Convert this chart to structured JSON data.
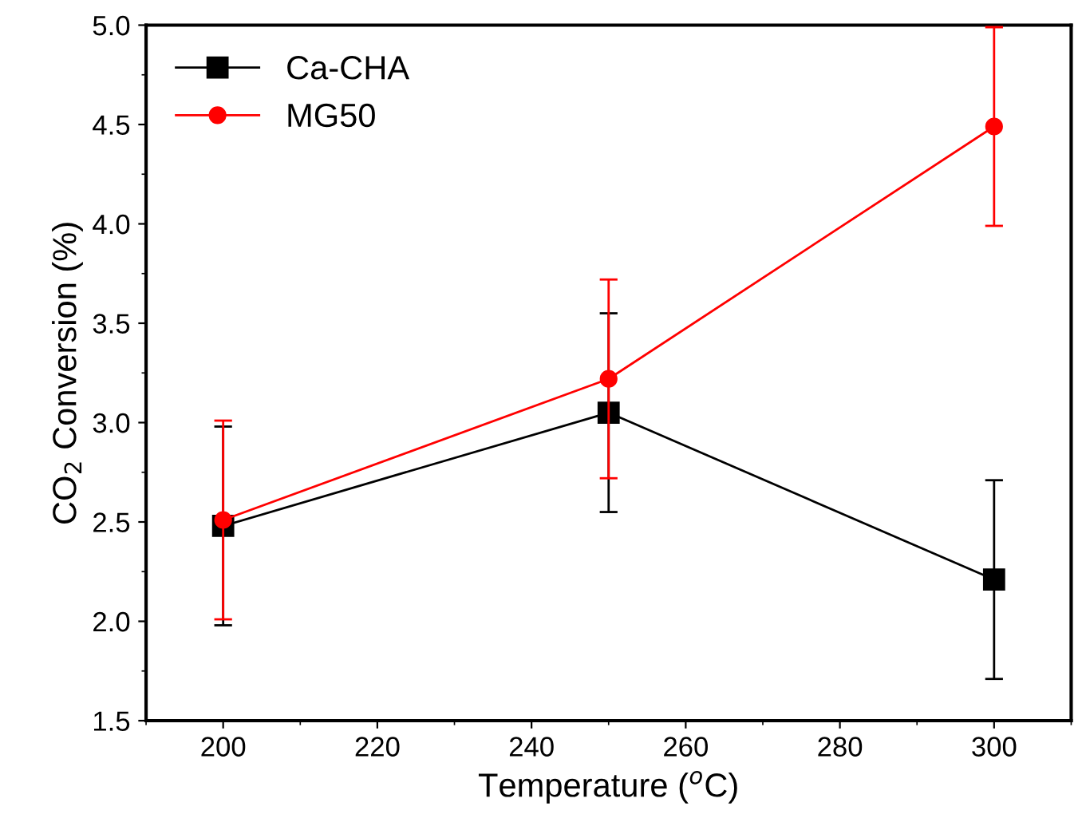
{
  "chart_data": {
    "type": "line",
    "xlabel": "Temperature ($^{o}$C)",
    "ylabel": "CO$_{2}$ Conversion (%)",
    "x": [
      200,
      250,
      300
    ],
    "series": [
      {
        "name": "Ca-CHA",
        "color": "#000000",
        "marker": "square",
        "values": [
          2.48,
          3.05,
          2.21
        ],
        "errors": [
          0.5,
          0.5,
          0.5
        ]
      },
      {
        "name": "MG50",
        "color": "#ff0000",
        "marker": "circle",
        "values": [
          2.51,
          3.22,
          4.49
        ],
        "errors": [
          0.5,
          0.5,
          0.5
        ]
      }
    ],
    "xlim": [
      190,
      310
    ],
    "xticks": [
      200,
      220,
      240,
      260,
      280,
      300
    ],
    "ylim": [
      1.5,
      5.0
    ],
    "yticks": [
      {
        "value": 1.5,
        "label": "1.5"
      },
      {
        "value": 2.0,
        "label": "2.0"
      },
      {
        "value": 2.5,
        "label": "2.5"
      },
      {
        "value": 3.0,
        "label": "3.0"
      },
      {
        "value": 3.5,
        "label": "3.5"
      },
      {
        "value": 4.0,
        "label": "4.0"
      },
      {
        "value": 4.5,
        "label": "4.5"
      },
      {
        "value": 5.0,
        "label": "5.0"
      }
    ],
    "grid": false,
    "legend": "top left",
    "line_style": "solid"
  }
}
